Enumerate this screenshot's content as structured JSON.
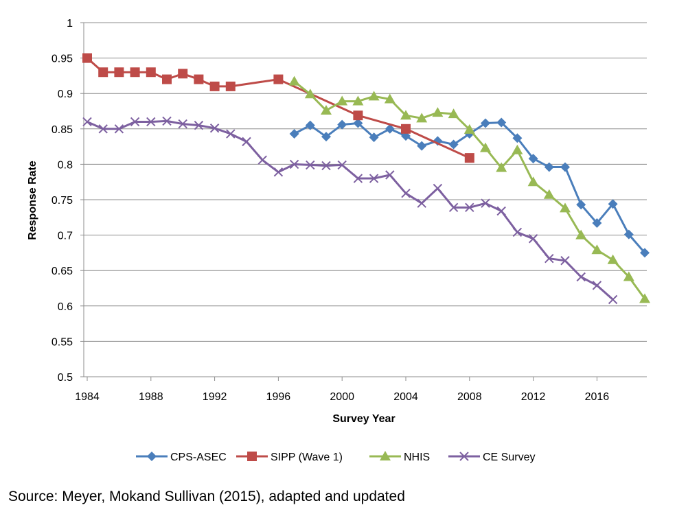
{
  "chart_data": {
    "type": "line",
    "title": "",
    "xlabel": "Survey Year",
    "ylabel": "Response Rate",
    "xlim": [
      1984,
      2019
    ],
    "ylim": [
      0.5,
      1
    ],
    "x_ticks": [
      1984,
      1988,
      1992,
      1996,
      2000,
      2004,
      2008,
      2012,
      2016
    ],
    "y_ticks": [
      0.5,
      0.55,
      0.6,
      0.65,
      0.7,
      0.75,
      0.8,
      0.85,
      0.9,
      0.95,
      1
    ],
    "y_tick_labels": [
      "0.5",
      "0.55",
      "0.6",
      "0.65",
      "0.7",
      "0.75",
      "0.8",
      "0.85",
      "0.9",
      "0.95",
      "1"
    ],
    "grid": "horizontal",
    "legend_position": "bottom",
    "series": [
      {
        "name": "CPS-ASEC",
        "color": "#4A7EBB",
        "marker": "diamond",
        "points": [
          [
            1997,
            0.843
          ],
          [
            1998,
            0.855
          ],
          [
            1999,
            0.839
          ],
          [
            2000,
            0.856
          ],
          [
            2001,
            0.858
          ],
          [
            2002,
            0.838
          ],
          [
            2003,
            0.85
          ],
          [
            2004,
            0.84
          ],
          [
            2005,
            0.826
          ],
          [
            2006,
            0.833
          ],
          [
            2007,
            0.828
          ],
          [
            2008,
            0.843
          ],
          [
            2009,
            0.858
          ],
          [
            2010,
            0.859
          ],
          [
            2011,
            0.837
          ],
          [
            2012,
            0.808
          ],
          [
            2013,
            0.796
          ],
          [
            2014,
            0.796
          ],
          [
            2015,
            0.743
          ],
          [
            2016,
            0.717
          ],
          [
            2017,
            0.744
          ],
          [
            2018,
            0.701
          ],
          [
            2019,
            0.675
          ]
        ]
      },
      {
        "name": "SIPP (Wave 1)",
        "color": "#BE4B48",
        "marker": "square",
        "points": [
          [
            1984,
            0.95
          ],
          [
            1985,
            0.93
          ],
          [
            1986,
            0.93
          ],
          [
            1987,
            0.93
          ],
          [
            1988,
            0.93
          ],
          [
            1989,
            0.92
          ],
          [
            1990,
            0.928
          ],
          [
            1991,
            0.92
          ],
          [
            1992,
            0.91
          ],
          [
            1993,
            0.91
          ],
          [
            1996,
            0.92
          ],
          [
            2001,
            0.869
          ],
          [
            2004,
            0.85
          ],
          [
            2008,
            0.809
          ]
        ]
      },
      {
        "name": "NHIS",
        "color": "#98B954",
        "marker": "triangle",
        "points": [
          [
            1997,
            0.917
          ],
          [
            1998,
            0.899
          ],
          [
            1999,
            0.876
          ],
          [
            2000,
            0.889
          ],
          [
            2001,
            0.889
          ],
          [
            2002,
            0.896
          ],
          [
            2003,
            0.892
          ],
          [
            2004,
            0.869
          ],
          [
            2005,
            0.865
          ],
          [
            2006,
            0.873
          ],
          [
            2007,
            0.871
          ],
          [
            2008,
            0.849
          ],
          [
            2009,
            0.823
          ],
          [
            2010,
            0.795
          ],
          [
            2011,
            0.82
          ],
          [
            2012,
            0.775
          ],
          [
            2013,
            0.757
          ],
          [
            2014,
            0.738
          ],
          [
            2015,
            0.7
          ],
          [
            2016,
            0.679
          ],
          [
            2017,
            0.665
          ],
          [
            2018,
            0.641
          ],
          [
            2019,
            0.61
          ]
        ]
      },
      {
        "name": "CE Survey",
        "color": "#7D60A0",
        "marker": "x",
        "points": [
          [
            1984,
            0.86
          ],
          [
            1985,
            0.85
          ],
          [
            1986,
            0.85
          ],
          [
            1987,
            0.86
          ],
          [
            1988,
            0.86
          ],
          [
            1989,
            0.861
          ],
          [
            1990,
            0.857
          ],
          [
            1991,
            0.855
          ],
          [
            1992,
            0.851
          ],
          [
            1993,
            0.843
          ],
          [
            1994,
            0.832
          ],
          [
            1995,
            0.806
          ],
          [
            1996,
            0.789
          ],
          [
            1997,
            0.8
          ],
          [
            1998,
            0.799
          ],
          [
            1999,
            0.798
          ],
          [
            2000,
            0.799
          ],
          [
            2001,
            0.78
          ],
          [
            2002,
            0.78
          ],
          [
            2003,
            0.785
          ],
          [
            2004,
            0.759
          ],
          [
            2005,
            0.745
          ],
          [
            2006,
            0.766
          ],
          [
            2007,
            0.739
          ],
          [
            2008,
            0.739
          ],
          [
            2009,
            0.745
          ],
          [
            2010,
            0.734
          ],
          [
            2011,
            0.704
          ],
          [
            2012,
            0.695
          ],
          [
            2013,
            0.667
          ],
          [
            2014,
            0.664
          ],
          [
            2015,
            0.641
          ],
          [
            2016,
            0.629
          ],
          [
            2017,
            0.609
          ]
        ]
      }
    ]
  },
  "source_note": "Source:  Meyer, Mokand Sullivan (2015), adapted and updated"
}
